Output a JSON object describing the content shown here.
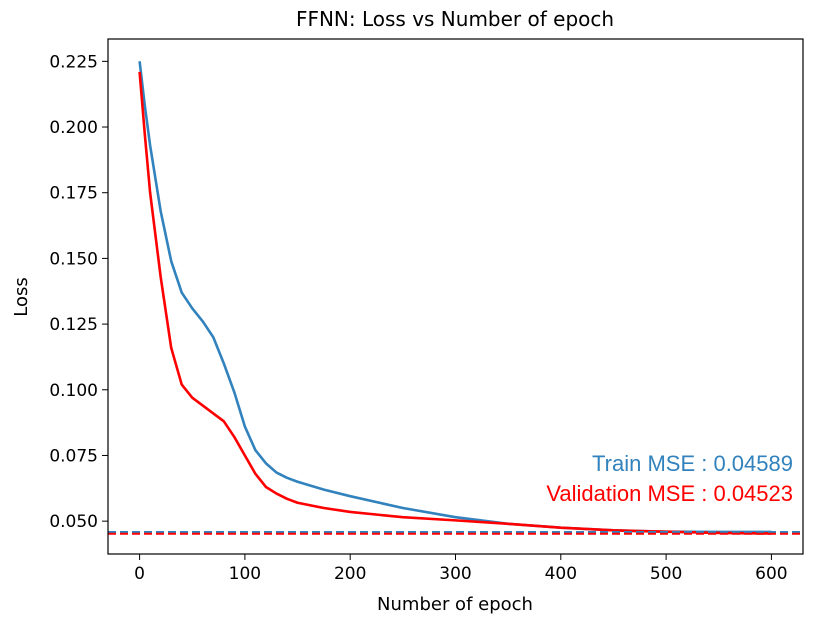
{
  "chart_data": {
    "type": "line",
    "title": "FFNN: Loss vs Number of epoch",
    "xlabel": "Number of epoch",
    "ylabel": "Loss",
    "xlim": [
      -30,
      630
    ],
    "ylim": [
      0.0375,
      0.2335
    ],
    "xticks": [
      0,
      100,
      200,
      300,
      400,
      500,
      600
    ],
    "xtick_labels": [
      "0",
      "100",
      "200",
      "300",
      "400",
      "500",
      "600"
    ],
    "yticks": [
      0.05,
      0.075,
      0.1,
      0.125,
      0.15,
      0.175,
      0.2,
      0.225
    ],
    "ytick_labels": [
      "0.050",
      "0.075",
      "0.100",
      "0.125",
      "0.150",
      "0.175",
      "0.200",
      "0.225"
    ],
    "grid": false,
    "series": [
      {
        "color": "#3182bd",
        "x": [
          0,
          5,
          10,
          20,
          30,
          40,
          50,
          60,
          70,
          80,
          90,
          100,
          110,
          120,
          130,
          140,
          150,
          175,
          200,
          250,
          300,
          350,
          400,
          450,
          500,
          550,
          600
        ],
        "y": [
          0.225,
          0.208,
          0.193,
          0.168,
          0.149,
          0.137,
          0.131,
          0.126,
          0.12,
          0.11,
          0.099,
          0.086,
          0.077,
          0.072,
          0.0685,
          0.0665,
          0.065,
          0.062,
          0.0595,
          0.055,
          0.0515,
          0.049,
          0.0475,
          0.0465,
          0.046,
          0.0459,
          0.0459
        ]
      },
      {
        "color": "#ff0000",
        "x": [
          0,
          5,
          10,
          20,
          30,
          40,
          50,
          60,
          70,
          80,
          90,
          100,
          110,
          120,
          130,
          140,
          150,
          175,
          200,
          250,
          300,
          350,
          400,
          450,
          500,
          550,
          600
        ],
        "y": [
          0.221,
          0.197,
          0.175,
          0.143,
          0.116,
          0.102,
          0.097,
          0.094,
          0.091,
          0.088,
          0.082,
          0.075,
          0.068,
          0.063,
          0.0605,
          0.0585,
          0.057,
          0.055,
          0.0535,
          0.0515,
          0.0503,
          0.049,
          0.0475,
          0.0465,
          0.046,
          0.0455,
          0.0453
        ]
      }
    ],
    "hlines": [
      {
        "y": 0.04589,
        "color": "#3182bd",
        "style": "dashed"
      },
      {
        "y": 0.04523,
        "color": "#ff0000",
        "style": "dashed"
      }
    ],
    "annotations": [
      {
        "text": "Train MSE : 0.04589",
        "color": "#3182bd"
      },
      {
        "text": "Validation MSE : 0.04523",
        "color": "#ff0000"
      }
    ]
  }
}
